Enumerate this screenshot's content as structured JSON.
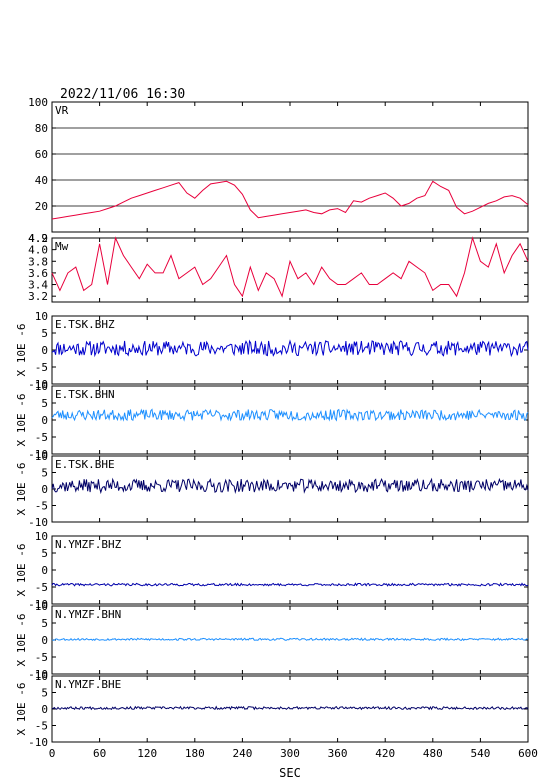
{
  "header": {
    "timestamp": "2022/11/06  16:30"
  },
  "chart_data": [
    {
      "type": "line",
      "label": "VR",
      "ylim": [
        0,
        100
      ],
      "yticks": [
        20,
        40,
        60,
        80,
        100
      ],
      "ytick_labels": [
        "20",
        "40",
        "60",
        "80",
        "100"
      ],
      "grid": true,
      "color": "#e8003c",
      "x": [
        0,
        10,
        20,
        30,
        40,
        50,
        60,
        70,
        80,
        90,
        100,
        110,
        120,
        130,
        140,
        150,
        160,
        170,
        180,
        190,
        200,
        210,
        220,
        230,
        240,
        250,
        260,
        270,
        280,
        290,
        300,
        310,
        320,
        330,
        340,
        350,
        360,
        370,
        380,
        390,
        400,
        410,
        420,
        430,
        440,
        450,
        460,
        470,
        480,
        490,
        500,
        510,
        520,
        530,
        540,
        550,
        560,
        570,
        580,
        590,
        600
      ],
      "values": [
        10,
        11,
        12,
        13,
        14,
        15,
        16,
        18,
        20,
        23,
        26,
        28,
        30,
        32,
        34,
        36,
        38,
        30,
        26,
        32,
        37,
        38,
        39,
        36,
        29,
        17,
        11,
        12,
        13,
        14,
        15,
        16,
        17,
        15,
        14,
        17,
        18,
        15,
        24,
        23,
        26,
        28,
        30,
        26,
        20,
        22,
        26,
        28,
        39,
        35,
        32,
        19,
        14,
        16,
        19,
        22,
        24,
        27,
        28,
        26,
        21
      ]
    },
    {
      "type": "line",
      "label": "Mw",
      "ylim": [
        3.1,
        4.2
      ],
      "yticks": [
        3.2,
        3.4,
        3.6,
        3.8,
        4.0,
        4.2
      ],
      "ytick_labels": [
        "3.2",
        "3.4",
        "3.6",
        "3.8",
        "4.0",
        "4.2"
      ],
      "top_label": "4.9",
      "color": "#e8003c",
      "x": [
        0,
        10,
        20,
        30,
        40,
        50,
        60,
        70,
        80,
        90,
        100,
        110,
        120,
        130,
        140,
        150,
        160,
        170,
        180,
        190,
        200,
        210,
        220,
        230,
        240,
        250,
        260,
        270,
        280,
        290,
        300,
        310,
        320,
        330,
        340,
        350,
        360,
        370,
        380,
        390,
        400,
        410,
        420,
        430,
        440,
        450,
        460,
        470,
        480,
        490,
        500,
        510,
        520,
        530,
        540,
        550,
        560,
        570,
        580,
        590,
        600
      ],
      "values": [
        3.6,
        3.3,
        3.6,
        3.7,
        3.3,
        3.4,
        4.1,
        3.4,
        4.2,
        3.9,
        3.7,
        3.5,
        3.75,
        3.6,
        3.6,
        3.9,
        3.5,
        3.6,
        3.7,
        3.4,
        3.5,
        3.7,
        3.9,
        3.4,
        3.2,
        3.7,
        3.3,
        3.6,
        3.5,
        3.2,
        3.8,
        3.5,
        3.6,
        3.4,
        3.7,
        3.5,
        3.4,
        3.4,
        3.5,
        3.6,
        3.4,
        3.4,
        3.5,
        3.6,
        3.5,
        3.8,
        3.7,
        3.6,
        3.3,
        3.4,
        3.4,
        3.2,
        3.6,
        4.2,
        3.8,
        3.7,
        4.1,
        3.6,
        3.9,
        4.1,
        3.8
      ]
    },
    {
      "type": "line",
      "label": "E.TSK.BHZ",
      "ylim": [
        -10,
        10
      ],
      "yticks": [
        -10,
        -5,
        0,
        5,
        10
      ],
      "ytick_labels": [
        "-10",
        "-5",
        "0",
        "5",
        "10"
      ],
      "ylabel": "X 10E -6",
      "color": "#0000cc",
      "noise": {
        "mean": 0.5,
        "amplitude": 2.2,
        "seed": 11
      }
    },
    {
      "type": "line",
      "label": "E.TSK.BHN",
      "ylim": [
        -10,
        10
      ],
      "yticks": [
        -10,
        -5,
        0,
        5,
        10
      ],
      "ytick_labels": [
        "-10",
        "-5",
        "0",
        "5",
        "10"
      ],
      "ylabel": "X 10E -6",
      "color": "#1e90ff",
      "noise": {
        "mean": 1.5,
        "amplitude": 1.6,
        "seed": 23
      }
    },
    {
      "type": "line",
      "label": "E.TSK.BHE",
      "ylim": [
        -10,
        10
      ],
      "yticks": [
        -10,
        -5,
        0,
        5,
        10
      ],
      "ytick_labels": [
        "-10",
        "-5",
        "0",
        "5",
        "10"
      ],
      "ylabel": "X 10E -6",
      "color": "#000066",
      "noise": {
        "mean": 1.0,
        "amplitude": 2.0,
        "seed": 37
      }
    },
    {
      "type": "line",
      "label": "N.YMZF.BHZ",
      "ylim": [
        -10,
        10
      ],
      "yticks": [
        -10,
        -5,
        0,
        5,
        10
      ],
      "ytick_labels": [
        "-10",
        "-5",
        "0",
        "5",
        "10"
      ],
      "ylabel": "X 10E -6",
      "color": "#0000aa",
      "noise": {
        "mean": -4.3,
        "amplitude": 0.35,
        "seed": 41
      }
    },
    {
      "type": "line",
      "label": "N.YMZF.BHN",
      "ylim": [
        -10,
        10
      ],
      "yticks": [
        -10,
        -5,
        0,
        5,
        10
      ],
      "ytick_labels": [
        "-10",
        "-5",
        "0",
        "5",
        "10"
      ],
      "ylabel": "X 10E -6",
      "color": "#1e90ff",
      "noise": {
        "mean": 0.2,
        "amplitude": 0.3,
        "seed": 53
      }
    },
    {
      "type": "line",
      "label": "N.YMZF.BHE",
      "ylim": [
        -10,
        10
      ],
      "yticks": [
        -10,
        -5,
        0,
        5,
        10
      ],
      "ytick_labels": [
        "-10",
        "-5",
        "0",
        "5",
        "10"
      ],
      "ylabel": "X 10E -6",
      "color": "#000066",
      "noise": {
        "mean": 0.3,
        "amplitude": 0.4,
        "seed": 67
      }
    }
  ],
  "x_axis": {
    "xlim": [
      0,
      600
    ],
    "ticks": [
      0,
      60,
      120,
      180,
      240,
      300,
      360,
      420,
      480,
      540,
      600
    ],
    "tick_labels": [
      "0",
      "60",
      "120",
      "180",
      "240",
      "300",
      "360",
      "420",
      "480",
      "540",
      "600"
    ],
    "xlabel": "SEC"
  }
}
